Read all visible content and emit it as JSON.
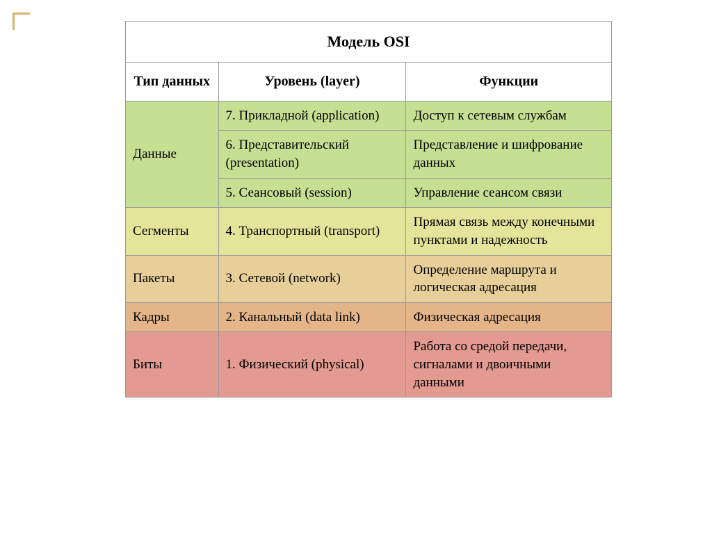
{
  "title": "Модель OSI",
  "headers": {
    "type": "Тип данных",
    "layer": "Уровень (layer)",
    "func": "Функции"
  },
  "colors": {
    "green": "#c5df93",
    "yellow": "#e5e49b",
    "tan": "#e6cf98",
    "orange": "#e3b588",
    "red": "#e29a91",
    "border": "#999999"
  },
  "rows": [
    {
      "type": "Данные",
      "type_rowspan": 3,
      "color": "green",
      "layer": "7. Прикладной (application)",
      "func": "Доступ к сетевым службам"
    },
    {
      "color": "green",
      "layer": "6. Представительский (presentation)",
      "func": "Представление и шифрование данных"
    },
    {
      "color": "green",
      "layer": "5. Сеансовый (session)",
      "func": "Управление сеансом связи"
    },
    {
      "type": "Сегменты",
      "color": "yellow",
      "layer": "4. Транспортный (transport)",
      "func": "Прямая связь между конечными пунктами и надежность"
    },
    {
      "type": "Пакеты",
      "color": "tan",
      "layer": "3. Сетевой (network)",
      "func": "Определение маршрута и логическая адресация"
    },
    {
      "type": "Кадры",
      "color": "orange",
      "layer": "2. Канальный (data link)",
      "func": "Физическая адресация"
    },
    {
      "type": "Биты",
      "color": "red",
      "layer": "1. Физический (physical)",
      "func": "Работа со средой передачи, сигналами и двоичными данными"
    }
  ]
}
